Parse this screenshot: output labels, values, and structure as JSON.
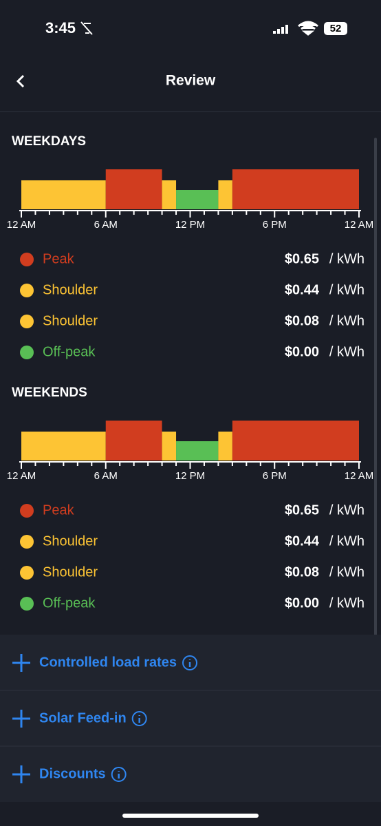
{
  "status_bar": {
    "time": "3:45",
    "battery": "52"
  },
  "header": {
    "title": "Review"
  },
  "sections": [
    {
      "title": "WEEKDAYS",
      "axis_labels": [
        "12 AM",
        "6 AM",
        "12 PM",
        "6 PM",
        "12 AM"
      ],
      "rates": [
        {
          "name": "Peak",
          "price": "$0.65",
          "unit": "/ kWh"
        },
        {
          "name": "Shoulder",
          "price": "$0.44",
          "unit": "/ kWh"
        },
        {
          "name": "Shoulder",
          "price": "$0.08",
          "unit": "/ kWh"
        },
        {
          "name": "Off-peak",
          "price": "$0.00",
          "unit": "/ kWh"
        }
      ]
    },
    {
      "title": "WEEKENDS",
      "axis_labels": [
        "12 AM",
        "6 AM",
        "12 PM",
        "6 PM",
        "12 AM"
      ],
      "rates": [
        {
          "name": "Peak",
          "price": "$0.65",
          "unit": "/ kWh"
        },
        {
          "name": "Shoulder",
          "price": "$0.44",
          "unit": "/ kWh"
        },
        {
          "name": "Shoulder",
          "price": "$0.08",
          "unit": "/ kWh"
        },
        {
          "name": "Off-peak",
          "price": "$0.00",
          "unit": "/ kWh"
        }
      ]
    }
  ],
  "expandables": [
    "Controlled load rates",
    "Solar Feed-in",
    "Discounts"
  ]
}
